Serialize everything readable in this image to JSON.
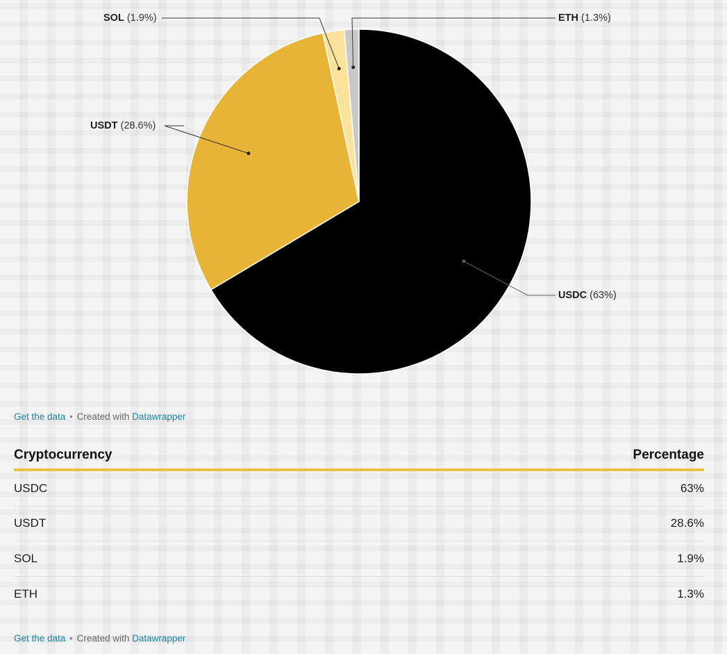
{
  "chart_data": {
    "type": "pie",
    "title": "",
    "slices": [
      {
        "name": "USDC",
        "value": 63,
        "label_pct": "(63%)",
        "color": "#000000"
      },
      {
        "name": "USDT",
        "value": 28.6,
        "label_pct": "(28.6%)",
        "color": "#e8b437"
      },
      {
        "name": "SOL",
        "value": 1.9,
        "label_pct": "(1.9%)",
        "color": "#fbe29a"
      },
      {
        "name": "ETH",
        "value": 1.3,
        "label_pct": "(1.3%)",
        "color": "#c8c8c8"
      }
    ]
  },
  "footer": {
    "get_data": "Get the data",
    "separator": "•",
    "created_with": "Created with",
    "tool": "Datawrapper"
  },
  "table": {
    "headers": [
      "Cryptocurrency",
      "Percentage"
    ],
    "rows": [
      [
        "USDC",
        "63%"
      ],
      [
        "USDT",
        "28.6%"
      ],
      [
        "SOL",
        "1.9%"
      ],
      [
        "ETH",
        "1.3%"
      ]
    ]
  },
  "colors": {
    "accent_rule": "#e8c14a",
    "link": "#1d81a2"
  }
}
